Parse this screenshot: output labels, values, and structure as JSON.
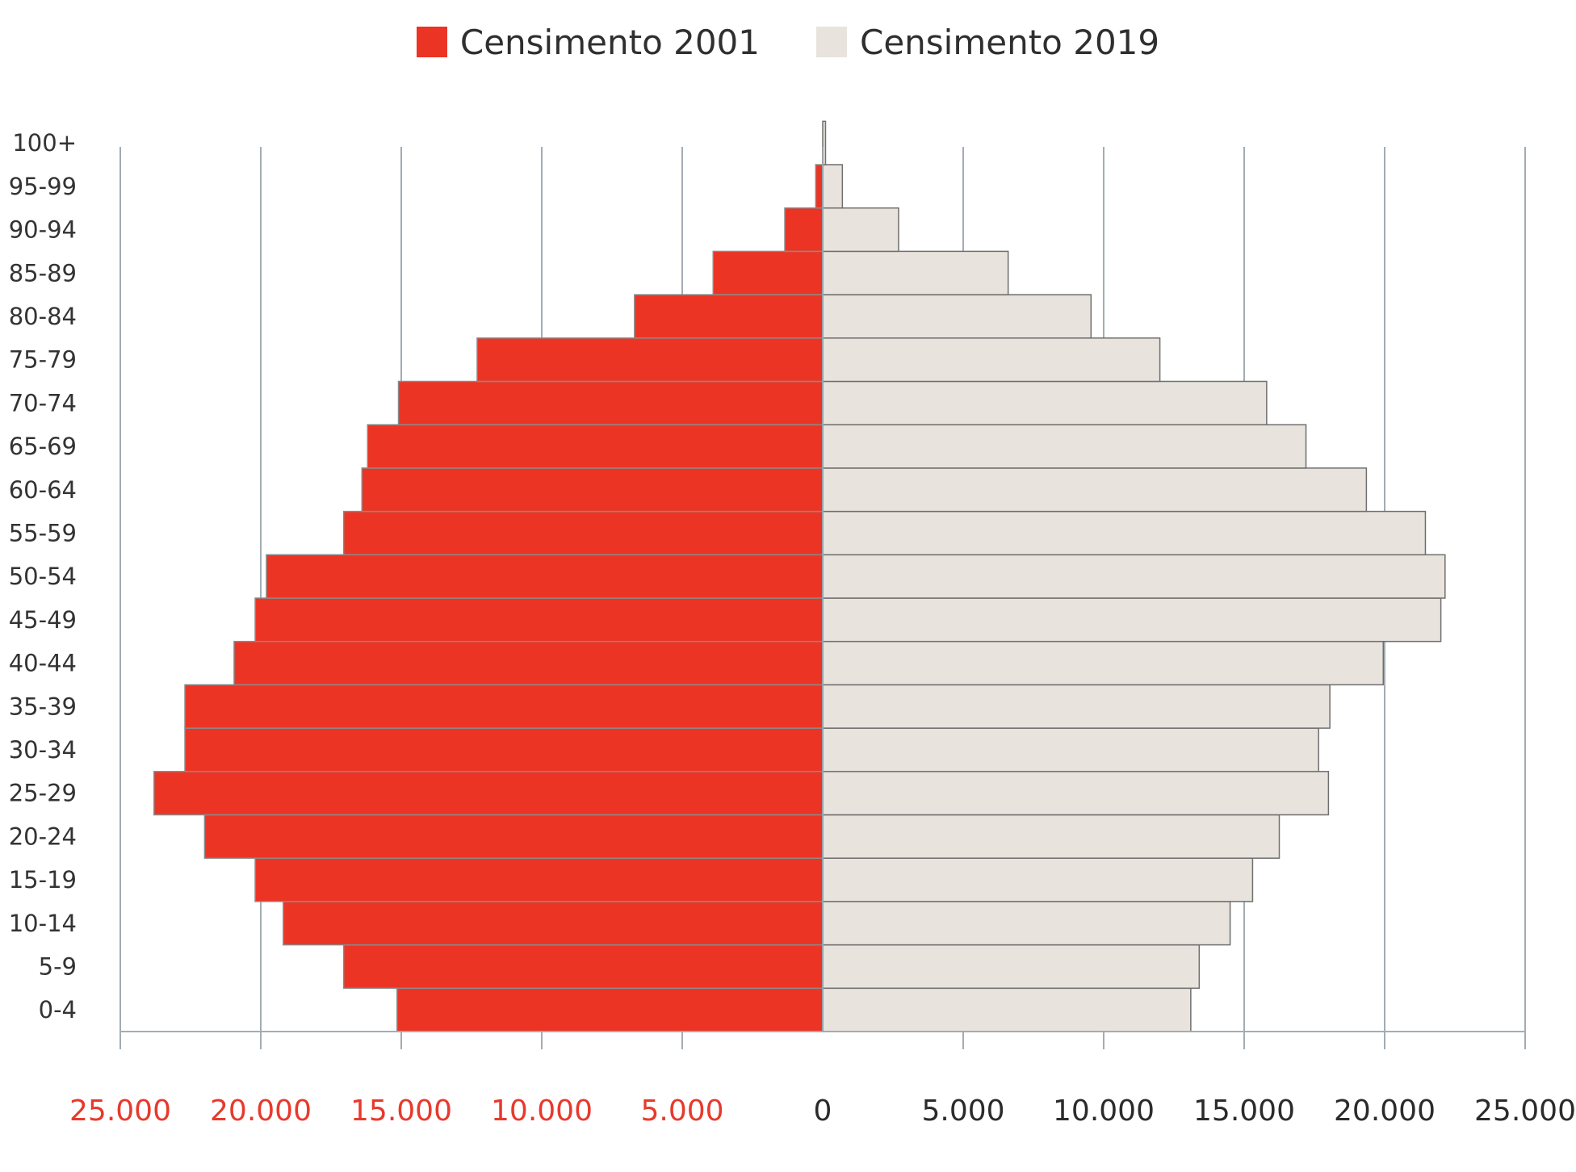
{
  "legend": [
    {
      "label": "Censimento 2001",
      "color": "#ec3425"
    },
    {
      "label": "Censimento 2019",
      "color": "#e8e3dd"
    }
  ],
  "chart_data": {
    "type": "bar",
    "orientation": "horizontal",
    "layout": "population-pyramid",
    "title": "",
    "xlabel": "",
    "ylabel": "",
    "xlim": [
      -25000,
      25000
    ],
    "grid": true,
    "legend_position": "top-center",
    "categories": [
      "0-4",
      "5-9",
      "10-14",
      "15-19",
      "20-24",
      "25-29",
      "30-34",
      "35-39",
      "40-44",
      "45-49",
      "50-54",
      "55-59",
      "60-64",
      "65-69",
      "70-74",
      "75-79",
      "80-84",
      "85-89",
      "90-94",
      "95-99",
      "100+"
    ],
    "series": [
      {
        "name": "Censimento 2001",
        "side": "left",
        "color": "#ec3425",
        "values": [
          15150,
          17050,
          19200,
          20200,
          22000,
          23800,
          22700,
          22700,
          20950,
          20200,
          19800,
          17050,
          16400,
          16200,
          15100,
          12300,
          6700,
          3900,
          1350,
          250,
          0
        ]
      },
      {
        "name": "Censimento 2019",
        "side": "right",
        "color": "#e8e3dd",
        "values": [
          13100,
          13400,
          14500,
          15300,
          16250,
          18000,
          17650,
          18050,
          19950,
          22000,
          22150,
          21450,
          19350,
          17200,
          15800,
          12000,
          9550,
          6600,
          2700,
          700,
          100
        ]
      }
    ],
    "x_ticks": [
      {
        "label": "25.000",
        "value": -25000,
        "color": "#e8392c"
      },
      {
        "label": "20.000",
        "value": -20000,
        "color": "#e8392c"
      },
      {
        "label": "15.000",
        "value": -15000,
        "color": "#e8392c"
      },
      {
        "label": "10.000",
        "value": -10000,
        "color": "#e8392c"
      },
      {
        "label": "5.000",
        "value": -5000,
        "color": "#e8392c"
      },
      {
        "label": "0",
        "value": 0,
        "color": "#2b2b2b"
      },
      {
        "label": "5.000",
        "value": 5000,
        "color": "#2b2b2b"
      },
      {
        "label": "10.000",
        "value": 10000,
        "color": "#2b2b2b"
      },
      {
        "label": "15.000",
        "value": 15000,
        "color": "#2b2b2b"
      },
      {
        "label": "20.000",
        "value": 20000,
        "color": "#2b2b2b"
      },
      {
        "label": "25.000",
        "value": 25000,
        "color": "#2b2b2b"
      }
    ]
  }
}
